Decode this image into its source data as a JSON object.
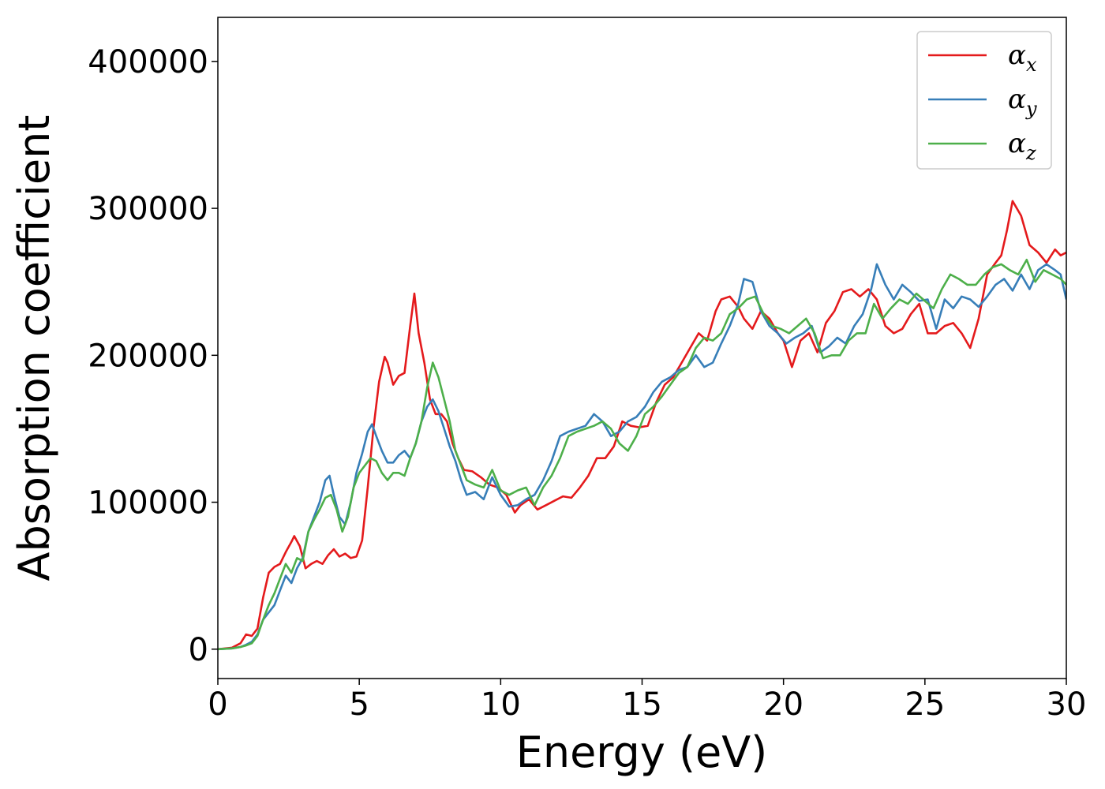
{
  "chart_data": {
    "type": "line",
    "title": "",
    "xlabel": "Energy (eV)",
    "ylabel": "Absorption coefficient",
    "xlim": [
      0,
      30
    ],
    "ylim": [
      -20000,
      430000
    ],
    "xticks": [
      0,
      5,
      10,
      15,
      20,
      25,
      30
    ],
    "yticks": [
      0,
      100000,
      200000,
      300000,
      400000
    ],
    "grid": false,
    "legend": {
      "position": "top-right",
      "entries": [
        {
          "base": "α",
          "sub": "x"
        },
        {
          "base": "α",
          "sub": "y"
        },
        {
          "base": "α",
          "sub": "z"
        }
      ]
    },
    "colors": [
      "#e41a1c",
      "#377eb8",
      "#4daf4a"
    ],
    "series": [
      {
        "x": [
          0,
          0.5,
          0.8,
          1.0,
          1.2,
          1.4,
          1.6,
          1.8,
          2.0,
          2.2,
          2.4,
          2.6,
          2.7,
          2.9,
          3.1,
          3.3,
          3.5,
          3.7,
          3.9,
          4.1,
          4.3,
          4.5,
          4.7,
          4.9,
          5.1,
          5.3,
          5.5,
          5.7,
          5.9,
          6.0,
          6.2,
          6.4,
          6.6,
          6.8,
          6.95,
          7.1,
          7.3,
          7.5,
          7.7,
          7.9,
          8.1,
          8.3,
          8.5,
          8.7,
          9.0,
          9.3,
          9.6,
          9.9,
          10.2,
          10.5,
          10.7,
          11.0,
          11.3,
          11.6,
          11.9,
          12.2,
          12.5,
          12.8,
          13.1,
          13.4,
          13.7,
          14.0,
          14.3,
          14.6,
          14.9,
          15.2,
          15.5,
          15.8,
          16.1,
          16.4,
          16.7,
          17.0,
          17.3,
          17.6,
          17.8,
          18.1,
          18.4,
          18.6,
          18.9,
          19.2,
          19.5,
          19.8,
          20.0,
          20.3,
          20.6,
          20.9,
          21.2,
          21.5,
          21.8,
          22.1,
          22.4,
          22.7,
          23.0,
          23.3,
          23.6,
          23.9,
          24.2,
          24.5,
          24.8,
          25.1,
          25.4,
          25.7,
          26.0,
          26.3,
          26.6,
          26.9,
          27.2,
          27.5,
          27.7,
          27.9,
          28.1,
          28.4,
          28.7,
          29.0,
          29.3,
          29.6,
          29.8,
          30.0
        ],
        "values": [
          0,
          1000,
          4000,
          10000,
          9000,
          14000,
          35000,
          52000,
          56000,
          58000,
          66000,
          73000,
          77000,
          70000,
          55000,
          58000,
          60000,
          58000,
          64000,
          68000,
          63000,
          65000,
          62000,
          63000,
          74000,
          110000,
          150000,
          182000,
          199000,
          195000,
          180000,
          186000,
          188000,
          220000,
          242000,
          215000,
          195000,
          170000,
          160000,
          160000,
          155000,
          140000,
          130000,
          122000,
          121000,
          117000,
          112000,
          110000,
          105000,
          93000,
          98000,
          102000,
          95000,
          98000,
          101000,
          104000,
          103000,
          110000,
          118000,
          130000,
          130000,
          138000,
          155000,
          152000,
          151000,
          152000,
          168000,
          180000,
          185000,
          195000,
          205000,
          215000,
          210000,
          230000,
          238000,
          240000,
          233000,
          225000,
          218000,
          230000,
          225000,
          215000,
          210000,
          192000,
          210000,
          215000,
          202000,
          222000,
          230000,
          243000,
          245000,
          240000,
          245000,
          238000,
          220000,
          215000,
          218000,
          228000,
          235000,
          215000,
          215000,
          220000,
          222000,
          215000,
          205000,
          225000,
          255000,
          263000,
          268000,
          285000,
          305000,
          295000,
          275000,
          270000,
          263000,
          272000,
          268000,
          270000
        ]
      },
      {
        "x": [
          0,
          0.5,
          0.8,
          1.0,
          1.2,
          1.4,
          1.6,
          1.8,
          2.0,
          2.2,
          2.4,
          2.6,
          2.8,
          3.0,
          3.2,
          3.4,
          3.6,
          3.8,
          3.95,
          4.1,
          4.3,
          4.5,
          4.7,
          4.9,
          5.1,
          5.3,
          5.45,
          5.6,
          5.8,
          6.0,
          6.2,
          6.4,
          6.6,
          6.8,
          7.0,
          7.2,
          7.4,
          7.6,
          7.8,
          8.0,
          8.2,
          8.4,
          8.6,
          8.8,
          9.1,
          9.4,
          9.7,
          10.0,
          10.3,
          10.6,
          10.9,
          11.2,
          11.5,
          11.8,
          12.1,
          12.4,
          12.7,
          13.0,
          13.3,
          13.6,
          13.9,
          14.2,
          14.5,
          14.8,
          15.1,
          15.4,
          15.7,
          16.0,
          16.3,
          16.6,
          16.9,
          17.2,
          17.5,
          17.8,
          18.1,
          18.4,
          18.6,
          18.9,
          19.2,
          19.5,
          19.8,
          20.1,
          20.4,
          20.7,
          21.0,
          21.3,
          21.6,
          21.9,
          22.2,
          22.5,
          22.8,
          23.1,
          23.3,
          23.6,
          23.9,
          24.2,
          24.5,
          24.8,
          25.1,
          25.4,
          25.7,
          26.0,
          26.3,
          26.6,
          26.9,
          27.2,
          27.5,
          27.8,
          28.1,
          28.4,
          28.7,
          29.0,
          29.3,
          29.6,
          29.8,
          30.0
        ],
        "values": [
          0,
          500,
          1500,
          3000,
          5000,
          10000,
          20000,
          25000,
          30000,
          40000,
          50000,
          45000,
          55000,
          62000,
          80000,
          90000,
          100000,
          115000,
          118000,
          105000,
          90000,
          85000,
          100000,
          120000,
          133000,
          148000,
          153000,
          145000,
          135000,
          127000,
          127000,
          132000,
          135000,
          130000,
          140000,
          155000,
          165000,
          170000,
          162000,
          150000,
          138000,
          128000,
          115000,
          105000,
          107000,
          102000,
          117000,
          105000,
          97000,
          98000,
          102000,
          105000,
          115000,
          128000,
          145000,
          148000,
          150000,
          152000,
          160000,
          155000,
          145000,
          148000,
          155000,
          158000,
          165000,
          175000,
          182000,
          185000,
          190000,
          192000,
          200000,
          192000,
          195000,
          208000,
          220000,
          235000,
          252000,
          250000,
          230000,
          220000,
          215000,
          208000,
          212000,
          215000,
          220000,
          202000,
          206000,
          212000,
          208000,
          220000,
          228000,
          245000,
          262000,
          248000,
          238000,
          248000,
          243000,
          237000,
          238000,
          218000,
          238000,
          232000,
          240000,
          238000,
          233000,
          240000,
          248000,
          252000,
          244000,
          255000,
          245000,
          258000,
          262000,
          258000,
          255000,
          238000
        ]
      },
      {
        "x": [
          0,
          0.5,
          0.8,
          1.0,
          1.2,
          1.4,
          1.6,
          1.8,
          2.0,
          2.2,
          2.4,
          2.6,
          2.8,
          3.0,
          3.2,
          3.4,
          3.6,
          3.8,
          4.0,
          4.2,
          4.4,
          4.6,
          4.8,
          5.0,
          5.2,
          5.4,
          5.6,
          5.8,
          6.0,
          6.2,
          6.4,
          6.6,
          6.8,
          7.0,
          7.2,
          7.4,
          7.6,
          7.8,
          8.0,
          8.2,
          8.4,
          8.6,
          8.8,
          9.1,
          9.4,
          9.7,
          10.0,
          10.3,
          10.6,
          10.9,
          11.2,
          11.5,
          11.8,
          12.1,
          12.4,
          12.7,
          13.0,
          13.3,
          13.6,
          13.9,
          14.2,
          14.5,
          14.8,
          15.1,
          15.4,
          15.7,
          16.0,
          16.3,
          16.6,
          16.9,
          17.2,
          17.5,
          17.8,
          18.1,
          18.4,
          18.7,
          19.0,
          19.3,
          19.6,
          19.9,
          20.2,
          20.5,
          20.8,
          21.1,
          21.4,
          21.7,
          22.0,
          22.3,
          22.6,
          22.9,
          23.2,
          23.5,
          23.8,
          24.1,
          24.4,
          24.7,
          25.0,
          25.3,
          25.6,
          25.9,
          26.2,
          26.5,
          26.8,
          27.1,
          27.4,
          27.7,
          28.0,
          28.3,
          28.6,
          28.9,
          29.2,
          29.5,
          29.8,
          30.0
        ],
        "values": [
          0,
          500,
          1500,
          2500,
          4000,
          9000,
          20000,
          30000,
          38000,
          48000,
          58000,
          52000,
          62000,
          60000,
          80000,
          88000,
          95000,
          103000,
          105000,
          95000,
          80000,
          90000,
          110000,
          120000,
          125000,
          130000,
          128000,
          120000,
          115000,
          120000,
          120000,
          118000,
          130000,
          140000,
          155000,
          178000,
          195000,
          185000,
          170000,
          155000,
          135000,
          125000,
          115000,
          112000,
          110000,
          122000,
          108000,
          105000,
          108000,
          110000,
          98000,
          110000,
          118000,
          130000,
          145000,
          148000,
          150000,
          152000,
          155000,
          150000,
          140000,
          135000,
          145000,
          160000,
          165000,
          172000,
          180000,
          188000,
          192000,
          205000,
          212000,
          210000,
          215000,
          228000,
          232000,
          238000,
          240000,
          228000,
          220000,
          218000,
          215000,
          220000,
          225000,
          215000,
          198000,
          200000,
          200000,
          210000,
          215000,
          215000,
          235000,
          225000,
          232000,
          238000,
          235000,
          242000,
          237000,
          232000,
          245000,
          255000,
          252000,
          248000,
          248000,
          255000,
          260000,
          262000,
          258000,
          255000,
          265000,
          250000,
          258000,
          255000,
          252000,
          248000
        ]
      }
    ]
  }
}
